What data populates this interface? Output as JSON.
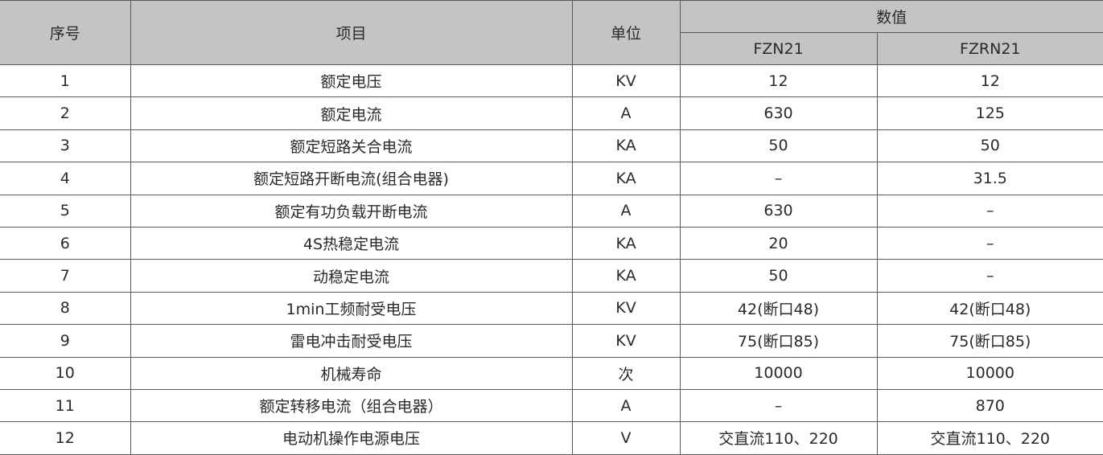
{
  "header": {
    "index": "序号",
    "item": "项目",
    "unit": "单位",
    "values": "数值",
    "models": [
      "FZN21",
      "FZRN21"
    ]
  },
  "rows": [
    {
      "no": "1",
      "item": "额定电压",
      "unit": "KV",
      "fzn21": "12",
      "fzrn21": "12"
    },
    {
      "no": "2",
      "item": "额定电流",
      "unit": "A",
      "fzn21": "630",
      "fzrn21": "125"
    },
    {
      "no": "3",
      "item": "额定短路关合电流",
      "unit": "KA",
      "fzn21": "50",
      "fzrn21": "50"
    },
    {
      "no": "4",
      "item": "额定短路开断电流(组合电器)",
      "unit": "KA",
      "fzn21": "–",
      "fzrn21": "31.5"
    },
    {
      "no": "5",
      "item": "额定有功负载开断电流",
      "unit": "A",
      "fzn21": "630",
      "fzrn21": "–"
    },
    {
      "no": "6",
      "item": "4S热稳定电流",
      "unit": "KA",
      "fzn21": "20",
      "fzrn21": "–"
    },
    {
      "no": "7",
      "item": "动稳定电流",
      "unit": "KA",
      "fzn21": "50",
      "fzrn21": "–"
    },
    {
      "no": "8",
      "item": "1min工频耐受电压",
      "unit": "KV",
      "fzn21": "42(断口48)",
      "fzrn21": "42(断口48)"
    },
    {
      "no": "9",
      "item": "雷电冲击耐受电压",
      "unit": "KV",
      "fzn21": "75(断口85)",
      "fzrn21": "75(断口85)"
    },
    {
      "no": "10",
      "item": "机械寿命",
      "unit": "次",
      "fzn21": "10000",
      "fzrn21": "10000"
    },
    {
      "no": "11",
      "item": "额定转移电流（组合电器）",
      "unit": "A",
      "fzn21": "–",
      "fzrn21": "870"
    },
    {
      "no": "12",
      "item": "电动机操作电源电压",
      "unit": "V",
      "fzn21": "交直流110、220",
      "fzrn21": "交直流110、220"
    }
  ]
}
